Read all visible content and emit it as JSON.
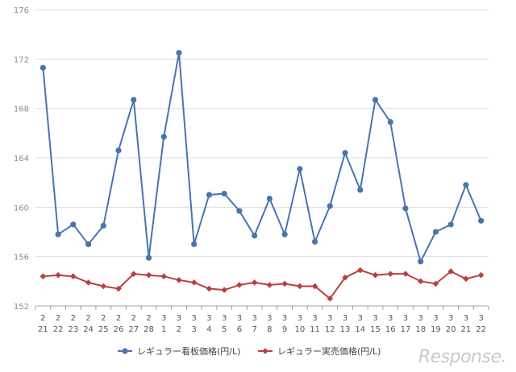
{
  "chart_data": {
    "type": "line",
    "categories": [
      [
        "2",
        "21"
      ],
      [
        "2",
        "22"
      ],
      [
        "2",
        "23"
      ],
      [
        "2",
        "24"
      ],
      [
        "2",
        "25"
      ],
      [
        "2",
        "26"
      ],
      [
        "2",
        "27"
      ],
      [
        "2",
        "28"
      ],
      [
        "3",
        "1"
      ],
      [
        "3",
        "2"
      ],
      [
        "3",
        "3"
      ],
      [
        "3",
        "4"
      ],
      [
        "3",
        "5"
      ],
      [
        "3",
        "6"
      ],
      [
        "3",
        "7"
      ],
      [
        "3",
        "8"
      ],
      [
        "3",
        "9"
      ],
      [
        "3",
        "10"
      ],
      [
        "3",
        "11"
      ],
      [
        "3",
        "12"
      ],
      [
        "3",
        "13"
      ],
      [
        "3",
        "14"
      ],
      [
        "3",
        "15"
      ],
      [
        "3",
        "16"
      ],
      [
        "3",
        "17"
      ],
      [
        "3",
        "18"
      ],
      [
        "3",
        "19"
      ],
      [
        "3",
        "20"
      ],
      [
        "3",
        "21"
      ],
      [
        "3",
        "22"
      ]
    ],
    "ylim": [
      152,
      176
    ],
    "yticks": [
      "152",
      "156",
      "160",
      "164",
      "168",
      "172",
      "176"
    ],
    "grid": true,
    "legend_position": "bottom",
    "series": [
      {
        "name": "レギュラー看板価格(円/L)",
        "color": "#4a74b0",
        "marker": "circle",
        "values": [
          171.3,
          157.8,
          158.6,
          157.0,
          158.5,
          164.6,
          168.7,
          155.9,
          165.7,
          172.5,
          157.0,
          161.0,
          161.1,
          159.7,
          157.7,
          160.7,
          157.8,
          163.1,
          157.2,
          160.1,
          164.4,
          161.4,
          168.7,
          166.9,
          159.9,
          155.6,
          158.0,
          158.6,
          161.8,
          158.9
        ]
      },
      {
        "name": "レギュラー実売価格(円/L)",
        "color": "#b8413c",
        "marker": "diamond",
        "values": [
          154.4,
          154.5,
          154.4,
          153.9,
          153.6,
          153.4,
          154.6,
          154.5,
          154.4,
          154.1,
          153.9,
          153.4,
          153.3,
          153.7,
          153.9,
          153.7,
          153.8,
          153.6,
          153.6,
          152.6,
          154.3,
          154.9,
          154.5,
          154.6,
          154.6,
          154.0,
          153.8,
          154.8,
          154.2,
          154.5
        ]
      }
    ]
  },
  "watermark": "Response."
}
